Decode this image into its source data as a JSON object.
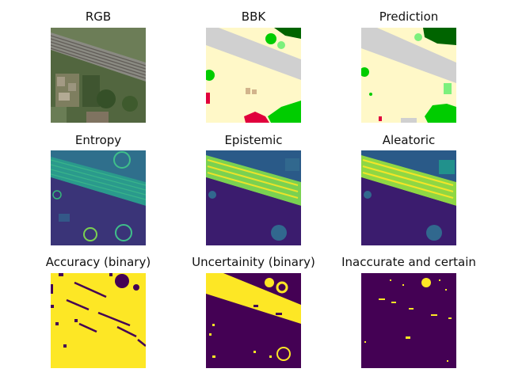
{
  "figure": {
    "panels": [
      {
        "id": "rgb",
        "title": "RGB"
      },
      {
        "id": "bbk",
        "title": "BBK"
      },
      {
        "id": "prediction",
        "title": "Prediction"
      },
      {
        "id": "entropy",
        "title": "Entropy"
      },
      {
        "id": "epistemic",
        "title": "Epistemic"
      },
      {
        "id": "aleatoric",
        "title": "Aleatoric"
      },
      {
        "id": "accuracy",
        "title": "Accuracy (binary)"
      },
      {
        "id": "uncertainty",
        "title": "Uncertainity (binary)"
      },
      {
        "id": "inaccurate",
        "title": "Inaccurate and certain"
      }
    ],
    "colors": {
      "viridis_dark": "#440154",
      "viridis_blue": "#31688e",
      "viridis_teal": "#21918c",
      "viridis_green": "#35b779",
      "viridis_yellow": "#fde725",
      "land_cream": "#fff8c8",
      "road_gray": "#d0d0d0",
      "veg_green": "#00cc00",
      "forest_dark": "#006400",
      "building_red": "#e0003c",
      "light_green": "#7cf07c"
    }
  }
}
